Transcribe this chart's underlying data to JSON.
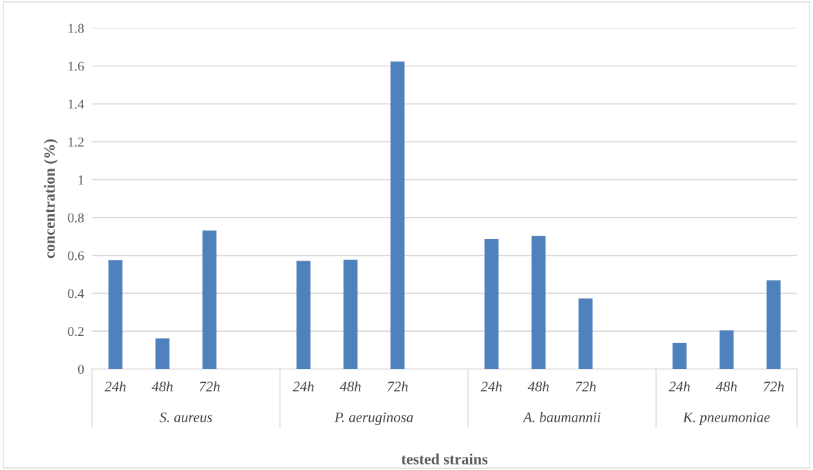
{
  "chart_data": {
    "type": "bar",
    "xlabel": "tested strains",
    "ylabel": "concentration (%)",
    "categories": [
      "24h",
      "48h",
      "72h",
      null,
      "24h",
      "48h",
      "72h",
      null,
      "24h",
      "48h",
      "72h",
      null,
      "24h",
      "48h",
      "72h"
    ],
    "values": [
      0.576,
      0.162,
      0.732,
      null,
      0.571,
      0.577,
      1.624,
      null,
      0.686,
      0.703,
      0.373,
      null,
      0.139,
      0.204,
      0.469
    ],
    "color": "#4f81bd",
    "annotations": [
      "S. aureus",
      "P. aeruginosa",
      "A. baumannii",
      "K. pneumoniae"
    ],
    "ylim": [
      0,
      1.8
    ],
    "yticks": [
      0,
      0.2,
      0.4,
      0.6,
      0.8,
      1,
      1.2,
      1.4,
      1.6,
      1.8
    ],
    "grid": "y",
    "legend": false
  }
}
